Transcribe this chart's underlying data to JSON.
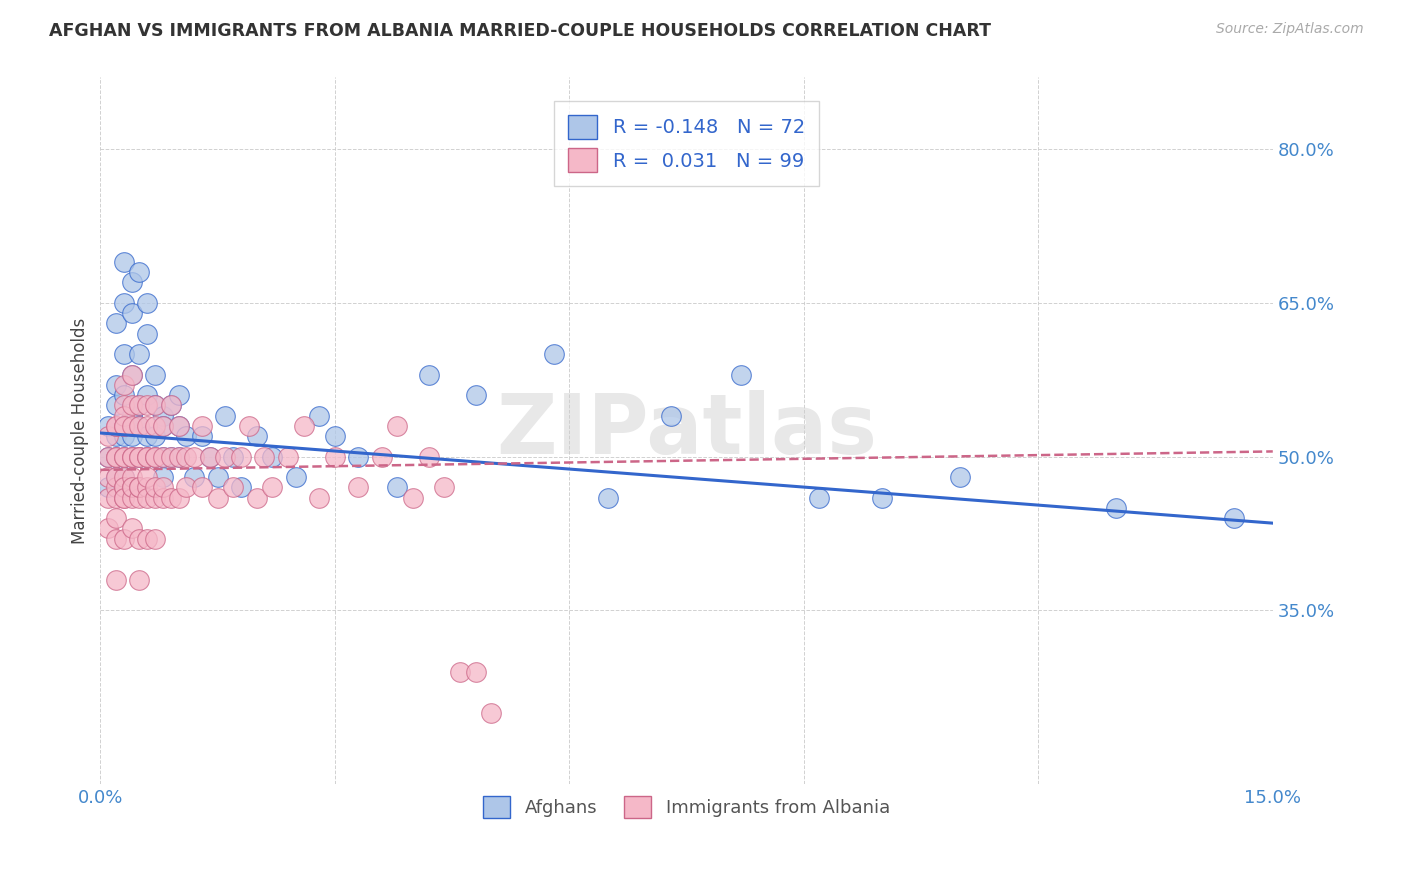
{
  "title": "AFGHAN VS IMMIGRANTS FROM ALBANIA MARRIED-COUPLE HOUSEHOLDS CORRELATION CHART",
  "source": "Source: ZipAtlas.com",
  "ylabel": "Married-couple Households",
  "xlim": [
    0.0,
    0.15
  ],
  "ylim": [
    0.18,
    0.87
  ],
  "xticks": [
    0.0,
    0.03,
    0.06,
    0.09,
    0.12,
    0.15
  ],
  "xtick_labels": [
    "0.0%",
    "",
    "",
    "",
    "",
    "15.0%"
  ],
  "ytick_labels": [
    "35.0%",
    "50.0%",
    "65.0%",
    "80.0%"
  ],
  "yticks": [
    0.35,
    0.5,
    0.65,
    0.8
  ],
  "blue_R": -0.148,
  "blue_N": 72,
  "pink_R": 0.031,
  "pink_N": 99,
  "blue_color": "#aec6e8",
  "pink_color": "#f5b8c8",
  "blue_line_color": "#3366cc",
  "pink_line_color": "#cc6688",
  "watermark": "ZIPatlas",
  "blue_line_x0": 0.0,
  "blue_line_y0": 0.523,
  "blue_line_x1": 0.15,
  "blue_line_y1": 0.435,
  "pink_line_x0": 0.0,
  "pink_line_y0": 0.487,
  "pink_line_x1": 0.15,
  "pink_line_y1": 0.505,
  "blue_scatter_x": [
    0.001,
    0.001,
    0.001,
    0.002,
    0.002,
    0.002,
    0.002,
    0.002,
    0.002,
    0.003,
    0.003,
    0.003,
    0.003,
    0.003,
    0.003,
    0.003,
    0.003,
    0.004,
    0.004,
    0.004,
    0.004,
    0.004,
    0.004,
    0.005,
    0.005,
    0.005,
    0.005,
    0.005,
    0.006,
    0.006,
    0.006,
    0.006,
    0.006,
    0.007,
    0.007,
    0.007,
    0.007,
    0.008,
    0.008,
    0.008,
    0.008,
    0.009,
    0.009,
    0.01,
    0.01,
    0.01,
    0.011,
    0.012,
    0.013,
    0.014,
    0.015,
    0.016,
    0.017,
    0.018,
    0.02,
    0.022,
    0.025,
    0.028,
    0.03,
    0.033,
    0.038,
    0.042,
    0.048,
    0.058,
    0.065,
    0.073,
    0.082,
    0.092,
    0.1,
    0.11,
    0.13,
    0.145
  ],
  "blue_scatter_y": [
    0.5,
    0.53,
    0.47,
    0.55,
    0.5,
    0.48,
    0.52,
    0.57,
    0.63,
    0.52,
    0.5,
    0.56,
    0.48,
    0.53,
    0.6,
    0.65,
    0.69,
    0.54,
    0.58,
    0.52,
    0.5,
    0.64,
    0.67,
    0.55,
    0.6,
    0.53,
    0.5,
    0.68,
    0.56,
    0.62,
    0.52,
    0.5,
    0.65,
    0.55,
    0.52,
    0.5,
    0.58,
    0.54,
    0.5,
    0.53,
    0.48,
    0.55,
    0.5,
    0.53,
    0.5,
    0.56,
    0.52,
    0.48,
    0.52,
    0.5,
    0.48,
    0.54,
    0.5,
    0.47,
    0.52,
    0.5,
    0.48,
    0.54,
    0.52,
    0.5,
    0.47,
    0.58,
    0.56,
    0.6,
    0.46,
    0.54,
    0.58,
    0.46,
    0.46,
    0.48,
    0.45,
    0.44
  ],
  "pink_scatter_x": [
    0.001,
    0.001,
    0.001,
    0.001,
    0.001,
    0.002,
    0.002,
    0.002,
    0.002,
    0.002,
    0.002,
    0.002,
    0.002,
    0.002,
    0.002,
    0.003,
    0.003,
    0.003,
    0.003,
    0.003,
    0.003,
    0.003,
    0.003,
    0.003,
    0.003,
    0.003,
    0.003,
    0.003,
    0.004,
    0.004,
    0.004,
    0.004,
    0.004,
    0.004,
    0.004,
    0.004,
    0.004,
    0.004,
    0.005,
    0.005,
    0.005,
    0.005,
    0.005,
    0.005,
    0.005,
    0.005,
    0.005,
    0.006,
    0.006,
    0.006,
    0.006,
    0.006,
    0.006,
    0.006,
    0.006,
    0.007,
    0.007,
    0.007,
    0.007,
    0.007,
    0.007,
    0.007,
    0.008,
    0.008,
    0.008,
    0.008,
    0.009,
    0.009,
    0.009,
    0.01,
    0.01,
    0.01,
    0.011,
    0.011,
    0.012,
    0.013,
    0.013,
    0.014,
    0.015,
    0.016,
    0.017,
    0.018,
    0.019,
    0.02,
    0.021,
    0.022,
    0.024,
    0.026,
    0.028,
    0.03,
    0.033,
    0.036,
    0.038,
    0.04,
    0.042,
    0.044,
    0.046,
    0.048,
    0.05
  ],
  "pink_scatter_y": [
    0.48,
    0.46,
    0.43,
    0.5,
    0.52,
    0.47,
    0.44,
    0.5,
    0.53,
    0.48,
    0.46,
    0.5,
    0.53,
    0.42,
    0.38,
    0.47,
    0.46,
    0.5,
    0.53,
    0.48,
    0.55,
    0.42,
    0.47,
    0.5,
    0.54,
    0.53,
    0.46,
    0.57,
    0.47,
    0.5,
    0.53,
    0.46,
    0.5,
    0.55,
    0.48,
    0.43,
    0.58,
    0.47,
    0.5,
    0.55,
    0.46,
    0.5,
    0.47,
    0.53,
    0.42,
    0.47,
    0.38,
    0.5,
    0.53,
    0.47,
    0.46,
    0.5,
    0.42,
    0.55,
    0.48,
    0.5,
    0.46,
    0.53,
    0.47,
    0.5,
    0.55,
    0.42,
    0.5,
    0.46,
    0.53,
    0.47,
    0.5,
    0.46,
    0.55,
    0.5,
    0.46,
    0.53,
    0.5,
    0.47,
    0.5,
    0.53,
    0.47,
    0.5,
    0.46,
    0.5,
    0.47,
    0.5,
    0.53,
    0.46,
    0.5,
    0.47,
    0.5,
    0.53,
    0.46,
    0.5,
    0.47,
    0.5,
    0.53,
    0.46,
    0.5,
    0.47,
    0.29,
    0.29,
    0.25
  ]
}
